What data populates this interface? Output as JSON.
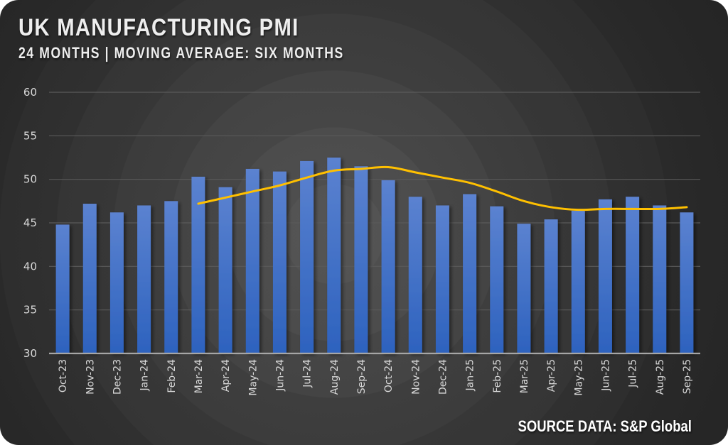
{
  "header": {
    "title": "UK MANUFACTURING PMI",
    "subtitle": "24 MONTHS | MOVING AVERAGE: SIX MONTHS"
  },
  "footer": {
    "source": "SOURCE DATA: S&P Global"
  },
  "colors": {
    "bar_top": "#5b82d0",
    "bar_bottom": "#2d62be",
    "moving_average": "#ffc000",
    "gridline": "#5a5a5a",
    "axis_line": "#a6a6a6",
    "tick_text": "#d9d9d9",
    "title_text": "#eeeeee"
  },
  "chart_data": {
    "type": "bar",
    "title": "UK MANUFACTURING PMI",
    "subtitle": "24 MONTHS | MOVING AVERAGE: SIX MONTHS",
    "xlabel": "",
    "ylabel": "",
    "ylim": [
      30,
      60
    ],
    "yticks": [
      30,
      35,
      40,
      45,
      50,
      55,
      60
    ],
    "grid": true,
    "legend": "none",
    "categories": [
      "Oct-23",
      "Nov-23",
      "Dec-23",
      "Jan-24",
      "Feb-24",
      "Mar-24",
      "Apr-24",
      "May-24",
      "Jun-24",
      "Jul-24",
      "Aug-24",
      "Sep-24",
      "Oct-24",
      "Nov-24",
      "Dec-24",
      "Jan-25",
      "Feb-25",
      "Mar-25",
      "Apr-25",
      "May-25",
      "Jun-25",
      "Jul-25",
      "Aug-25",
      "Sep-25"
    ],
    "series": [
      {
        "name": "PMI",
        "type": "bar",
        "values": [
          44.8,
          47.2,
          46.2,
          47.0,
          47.5,
          50.3,
          49.1,
          51.2,
          50.9,
          52.1,
          52.5,
          51.5,
          49.9,
          48.0,
          47.0,
          48.3,
          46.9,
          44.9,
          45.4,
          46.4,
          47.7,
          48.0,
          47.0,
          46.2
        ]
      },
      {
        "name": "6-month moving average",
        "type": "line",
        "values": [
          null,
          null,
          null,
          null,
          null,
          47.2,
          47.9,
          48.6,
          49.3,
          50.2,
          51.0,
          51.2,
          51.4,
          50.8,
          50.2,
          49.6,
          48.6,
          47.5,
          46.8,
          46.5,
          46.6,
          46.6,
          46.6,
          46.8
        ]
      }
    ],
    "annotations": [
      "SOURCE DATA: S&P Global"
    ]
  }
}
